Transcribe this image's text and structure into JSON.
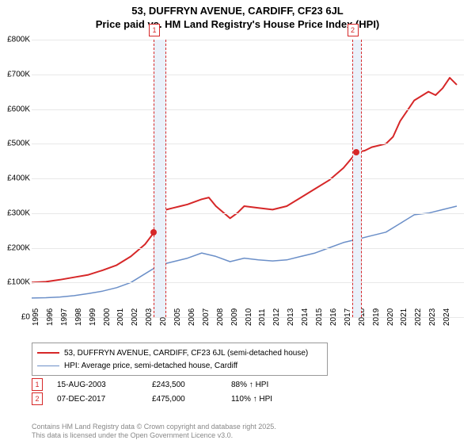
{
  "title": {
    "line1": "53, DUFFRYN AVENUE, CARDIFF, CF23 6JL",
    "line2": "Price paid vs. HM Land Registry's House Price Index (HPI)",
    "fontsize": 13,
    "fontweight": "bold"
  },
  "chart": {
    "type": "line",
    "background_color": "#ffffff",
    "grid_color": "#e8e8e8",
    "axis_color": "#999999",
    "label_fontsize": 10,
    "xlim": [
      1995,
      2025.5
    ],
    "ylim": [
      0,
      800000
    ],
    "ytick_step": 100000,
    "yticks": [
      {
        "v": 0,
        "label": "£0"
      },
      {
        "v": 100000,
        "label": "£100K"
      },
      {
        "v": 200000,
        "label": "£200K"
      },
      {
        "v": 300000,
        "label": "£300K"
      },
      {
        "v": 400000,
        "label": "£400K"
      },
      {
        "v": 500000,
        "label": "£500K"
      },
      {
        "v": 600000,
        "label": "£600K"
      },
      {
        "v": 700000,
        "label": "£700K"
      },
      {
        "v": 800000,
        "label": "£800K"
      }
    ],
    "xticks": [
      1995,
      1996,
      1997,
      1998,
      1999,
      2000,
      2001,
      2002,
      2003,
      2004,
      2005,
      2006,
      2007,
      2008,
      2009,
      2010,
      2011,
      2012,
      2013,
      2014,
      2015,
      2016,
      2017,
      2018,
      2019,
      2020,
      2021,
      2022,
      2023,
      2024
    ],
    "bands": [
      {
        "start": 2003.6,
        "end": 2004.4
      },
      {
        "start": 2017.6,
        "end": 2018.2
      }
    ],
    "band_fill": "#eaf1fa",
    "band_border": "#d62728",
    "markers": [
      {
        "idx": "1",
        "x": 2003.6
      },
      {
        "idx": "2",
        "x": 2017.6
      }
    ],
    "sale_points": [
      {
        "x": 2003.62,
        "y": 243500
      },
      {
        "x": 2017.93,
        "y": 475000
      }
    ],
    "sale_point_color": "#d62728",
    "series": [
      {
        "name": "53, DUFFRYN AVENUE, CARDIFF, CF23 6JL (semi-detached house)",
        "color": "#d62728",
        "line_width": 2,
        "data": [
          [
            1995,
            100000
          ],
          [
            1996,
            102000
          ],
          [
            1997,
            108000
          ],
          [
            1998,
            115000
          ],
          [
            1999,
            122000
          ],
          [
            2000,
            135000
          ],
          [
            2001,
            150000
          ],
          [
            2002,
            175000
          ],
          [
            2003,
            210000
          ],
          [
            2003.62,
            243500
          ],
          [
            2004,
            290000
          ],
          [
            2004.5,
            310000
          ],
          [
            2005,
            315000
          ],
          [
            2005.5,
            320000
          ],
          [
            2006,
            325000
          ],
          [
            2007,
            340000
          ],
          [
            2007.5,
            345000
          ],
          [
            2008,
            320000
          ],
          [
            2009,
            285000
          ],
          [
            2009.5,
            300000
          ],
          [
            2010,
            320000
          ],
          [
            2011,
            315000
          ],
          [
            2012,
            310000
          ],
          [
            2013,
            320000
          ],
          [
            2014,
            345000
          ],
          [
            2015,
            370000
          ],
          [
            2016,
            395000
          ],
          [
            2017,
            430000
          ],
          [
            2017.93,
            475000
          ],
          [
            2018.5,
            480000
          ],
          [
            2019,
            490000
          ],
          [
            2020,
            500000
          ],
          [
            2020.5,
            520000
          ],
          [
            2021,
            565000
          ],
          [
            2022,
            625000
          ],
          [
            2023,
            650000
          ],
          [
            2023.5,
            640000
          ],
          [
            2024,
            660000
          ],
          [
            2024.5,
            690000
          ],
          [
            2025,
            670000
          ]
        ]
      },
      {
        "name": "HPI: Average price, semi-detached house, Cardiff",
        "color": "#6b8fc8",
        "line_width": 1.5,
        "data": [
          [
            1995,
            55000
          ],
          [
            1996,
            56000
          ],
          [
            1997,
            58000
          ],
          [
            1998,
            62000
          ],
          [
            1999,
            68000
          ],
          [
            2000,
            75000
          ],
          [
            2001,
            85000
          ],
          [
            2002,
            100000
          ],
          [
            2003,
            125000
          ],
          [
            2004,
            150000
          ],
          [
            2005,
            160000
          ],
          [
            2006,
            170000
          ],
          [
            2007,
            185000
          ],
          [
            2008,
            175000
          ],
          [
            2009,
            160000
          ],
          [
            2010,
            170000
          ],
          [
            2011,
            165000
          ],
          [
            2012,
            162000
          ],
          [
            2013,
            165000
          ],
          [
            2014,
            175000
          ],
          [
            2015,
            185000
          ],
          [
            2016,
            200000
          ],
          [
            2017,
            215000
          ],
          [
            2018,
            225000
          ],
          [
            2019,
            235000
          ],
          [
            2020,
            245000
          ],
          [
            2021,
            270000
          ],
          [
            2022,
            295000
          ],
          [
            2023,
            300000
          ],
          [
            2024,
            310000
          ],
          [
            2025,
            320000
          ]
        ]
      }
    ]
  },
  "legend": {
    "items": [
      {
        "color": "#d62728",
        "width": 2,
        "label": "53, DUFFRYN AVENUE, CARDIFF, CF23 6JL (semi-detached house)"
      },
      {
        "color": "#6b8fc8",
        "width": 1.5,
        "label": "HPI: Average price, semi-detached house, Cardiff"
      }
    ]
  },
  "sales_table": {
    "rows": [
      {
        "idx": "1",
        "date": "15-AUG-2003",
        "price": "£243,500",
        "ratio": "88% ↑ HPI"
      },
      {
        "idx": "2",
        "date": "07-DEC-2017",
        "price": "£475,000",
        "ratio": "110% ↑ HPI"
      }
    ]
  },
  "footer": {
    "line1": "Contains HM Land Registry data © Crown copyright and database right 2025.",
    "line2": "This data is licensed under the Open Government Licence v3.0."
  }
}
